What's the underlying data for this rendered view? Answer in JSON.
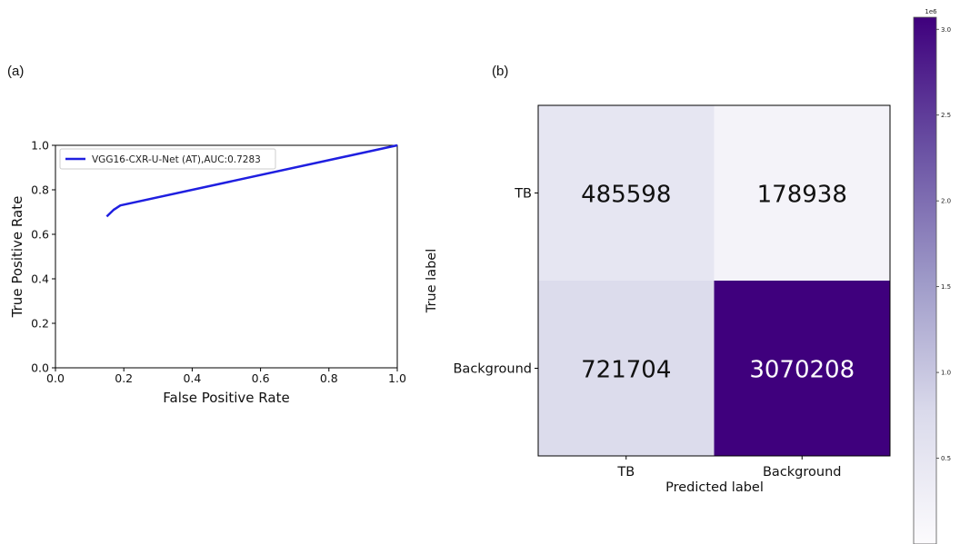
{
  "panels": {
    "a_label": "(a)",
    "b_label": "(b)"
  },
  "chart_data": [
    {
      "type": "line",
      "xlabel": "False Positive Rate",
      "ylabel": "True Positive Rate",
      "xlim": [
        0.0,
        1.0
      ],
      "ylim": [
        0.0,
        1.0
      ],
      "xticks": [
        "0.0",
        "0.2",
        "0.4",
        "0.6",
        "0.8",
        "1.0"
      ],
      "yticks": [
        "0.0",
        "0.2",
        "0.4",
        "0.6",
        "0.8",
        "1.0"
      ],
      "grid": false,
      "legend_position": "upper-left",
      "series": [
        {
          "name": "VGG16-CXR-U-Net (AT),AUC:0.7283",
          "color": "#1f1fe0",
          "x": [
            0.15,
            0.17,
            0.19,
            1.0
          ],
          "y": [
            0.68,
            0.71,
            0.73,
            1.0
          ]
        }
      ]
    },
    {
      "type": "heatmap",
      "xlabel": "Predicted label",
      "ylabel": "True label",
      "x_categories": [
        "TB",
        "Background"
      ],
      "y_categories": [
        "TB",
        "Background"
      ],
      "values": [
        [
          485598,
          178938
        ],
        [
          721704,
          3070208
        ]
      ],
      "value_labels": [
        [
          "485598",
          "178938"
        ],
        [
          "721704",
          "3070208"
        ]
      ],
      "colormap": "Purples",
      "colorbar": {
        "range": [
          0,
          3070208
        ],
        "ticks": [
          0.5,
          1.0,
          1.5,
          2.0,
          2.5,
          3.0
        ],
        "tick_labels": [
          "0.5",
          "1.0",
          "1.5",
          "2.0",
          "2.5",
          "3.0"
        ],
        "offset_label": "1e6"
      }
    }
  ]
}
